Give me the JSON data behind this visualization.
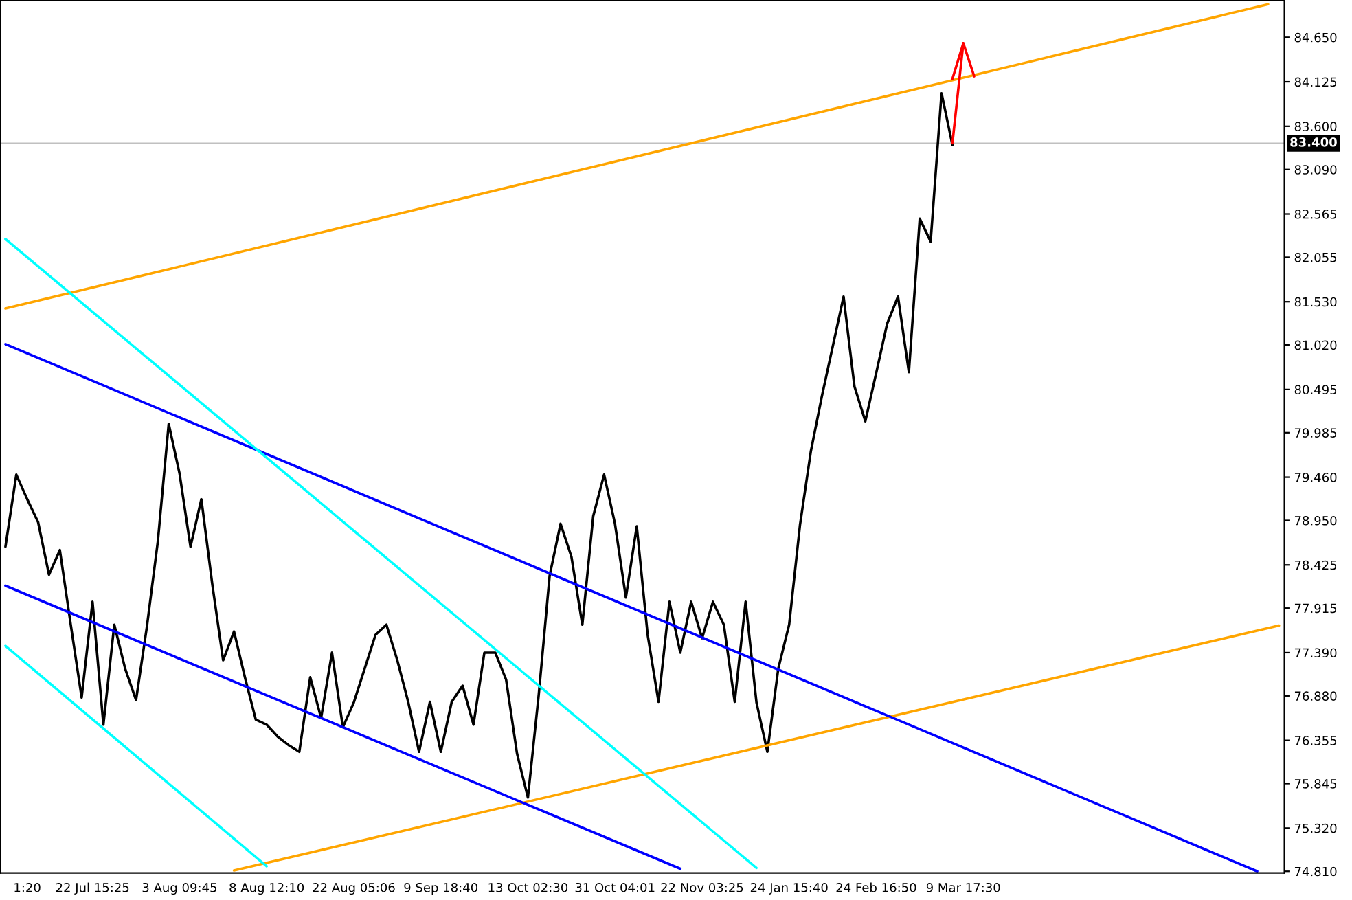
{
  "chart_data": {
    "type": "line",
    "categories": [
      null,
      null,
      "1:20",
      null,
      null,
      null,
      null,
      null,
      "22 Jul 15:25",
      null,
      null,
      null,
      null,
      null,
      null,
      null,
      "3 Aug 09:45",
      null,
      null,
      null,
      null,
      null,
      null,
      null,
      "8 Aug 12:10",
      null,
      null,
      null,
      null,
      null,
      null,
      null,
      "22 Aug 05:06",
      null,
      null,
      null,
      null,
      null,
      null,
      null,
      "9 Sep 18:40",
      null,
      null,
      null,
      null,
      null,
      null,
      null,
      "13 Oct 02:30",
      null,
      null,
      null,
      null,
      null,
      null,
      null,
      "31 Oct 04:01",
      null,
      null,
      null,
      null,
      null,
      null,
      null,
      "22 Nov 03:25",
      null,
      null,
      null,
      null,
      null,
      null,
      null,
      "24 Jan 15:40",
      null,
      null,
      null,
      null,
      null,
      null,
      null,
      "24 Feb 16:50",
      null,
      null,
      null,
      null,
      null,
      null,
      null,
      "9 Mar 17:30",
      null,
      null,
      null,
      null,
      null,
      null,
      null,
      null,
      null,
      null,
      null,
      null,
      null,
      null,
      null,
      null,
      null,
      null,
      null,
      null,
      null,
      null,
      null,
      null,
      null,
      null,
      null,
      null,
      null
    ],
    "ylim": [
      74.79,
      85.09
    ],
    "yticks": [
      {
        "value": 74.81,
        "label": "74.810"
      },
      {
        "value": 75.32,
        "label": "75.320"
      },
      {
        "value": 75.845,
        "label": "75.845"
      },
      {
        "value": 76.355,
        "label": "76.355"
      },
      {
        "value": 76.88,
        "label": "76.880"
      },
      {
        "value": 77.39,
        "label": "77.390"
      },
      {
        "value": 77.915,
        "label": "77.915"
      },
      {
        "value": 78.425,
        "label": "78.425"
      },
      {
        "value": 78.95,
        "label": "78.950"
      },
      {
        "value": 79.46,
        "label": "79.460"
      },
      {
        "value": 79.985,
        "label": "79.985"
      },
      {
        "value": 80.495,
        "label": "80.495"
      },
      {
        "value": 81.02,
        "label": "81.020"
      },
      {
        "value": 81.53,
        "label": "81.530"
      },
      {
        "value": 82.055,
        "label": "82.055"
      },
      {
        "value": 82.565,
        "label": "82.565"
      },
      {
        "value": 83.09,
        "label": "83.090"
      },
      {
        "value": 83.6,
        "label": "83.600"
      },
      {
        "value": 84.125,
        "label": "84.125"
      },
      {
        "value": 84.65,
        "label": "84.650"
      }
    ],
    "grid": false,
    "line_style": "solid",
    "ref_lines": [
      {
        "axis": "y",
        "value": 83.4,
        "label": "83.400",
        "color": "#c0c0c0"
      }
    ],
    "series": [
      {
        "color": "#000000",
        "values": [
          78.64,
          79.49,
          79.2,
          78.93,
          78.31,
          78.6,
          77.72,
          76.86,
          77.99,
          76.54,
          77.72,
          77.2,
          76.83,
          77.7,
          78.7,
          80.09,
          79.5,
          78.64,
          79.2,
          78.2,
          77.3,
          77.64,
          77.1,
          76.6,
          76.54,
          76.4,
          76.3,
          76.22,
          77.1,
          76.62,
          77.39,
          76.51,
          76.8,
          77.2,
          77.6,
          77.72,
          77.3,
          76.81,
          76.22,
          76.81,
          76.22,
          76.81,
          77.0,
          76.54,
          77.39,
          77.39,
          77.07,
          76.2,
          75.68,
          76.9,
          78.3,
          78.91,
          78.52,
          77.72,
          79.0,
          79.49,
          78.91,
          78.04,
          78.88,
          77.6,
          76.81,
          77.99,
          77.39,
          77.99,
          77.56,
          77.99,
          77.72,
          76.81,
          77.99,
          76.8,
          76.22,
          77.2,
          77.72,
          78.9,
          79.77,
          80.41,
          81.0,
          81.59,
          80.53,
          80.12,
          80.69,
          81.27,
          81.59,
          80.7,
          82.51,
          82.24,
          83.99,
          83.38,
          null,
          null,
          null,
          null,
          null,
          null,
          null,
          null,
          null,
          null,
          null,
          null,
          null,
          null,
          null,
          null,
          null,
          null,
          null,
          null,
          null,
          null,
          null,
          null,
          null,
          null,
          null,
          null,
          null,
          null
        ]
      },
      {
        "color": "#ffa500",
        "values": [
          81.45,
          null,
          null,
          null,
          null,
          null,
          null,
          null,
          null,
          null,
          null,
          null,
          null,
          null,
          null,
          null,
          null,
          null,
          null,
          null,
          null,
          null,
          null,
          null,
          null,
          null,
          null,
          null,
          null,
          null,
          null,
          null,
          null,
          null,
          null,
          null,
          null,
          null,
          null,
          null,
          null,
          null,
          null,
          null,
          null,
          null,
          null,
          null,
          null,
          null,
          null,
          null,
          null,
          null,
          null,
          null,
          null,
          null,
          null,
          null,
          null,
          null,
          null,
          null,
          null,
          null,
          null,
          null,
          null,
          null,
          null,
          null,
          null,
          null,
          null,
          null,
          null,
          null,
          null,
          null,
          null,
          null,
          null,
          null,
          null,
          null,
          null,
          null,
          null,
          null,
          null,
          null,
          null,
          null,
          null,
          null,
          null,
          null,
          null,
          null,
          null,
          null,
          null,
          null,
          null,
          null,
          null,
          null,
          null,
          null,
          null,
          null,
          null,
          null,
          null,
          null,
          85.04,
          null
        ]
      },
      {
        "color": "#ffa500",
        "values": [
          null,
          null,
          null,
          null,
          null,
          null,
          null,
          null,
          null,
          null,
          null,
          null,
          null,
          null,
          null,
          null,
          null,
          null,
          null,
          null,
          null,
          74.82,
          null,
          null,
          null,
          null,
          null,
          null,
          null,
          null,
          null,
          null,
          null,
          null,
          null,
          null,
          null,
          null,
          null,
          null,
          null,
          null,
          null,
          null,
          null,
          null,
          null,
          null,
          null,
          null,
          null,
          null,
          null,
          null,
          null,
          null,
          null,
          null,
          null,
          null,
          null,
          null,
          null,
          null,
          null,
          null,
          null,
          null,
          null,
          null,
          null,
          null,
          null,
          null,
          null,
          null,
          null,
          null,
          null,
          null,
          null,
          null,
          null,
          null,
          null,
          null,
          null,
          null,
          null,
          null,
          null,
          null,
          null,
          null,
          null,
          null,
          null,
          null,
          null,
          null,
          null,
          null,
          null,
          null,
          null,
          null,
          null,
          null,
          null,
          null,
          null,
          null,
          null,
          null,
          null,
          null,
          null,
          77.71
        ]
      },
      {
        "color": "#0000ff",
        "values": [
          81.03,
          null,
          null,
          null,
          null,
          null,
          null,
          null,
          null,
          null,
          null,
          null,
          null,
          null,
          null,
          null,
          null,
          null,
          null,
          null,
          null,
          null,
          null,
          null,
          null,
          null,
          null,
          null,
          null,
          null,
          null,
          null,
          null,
          null,
          null,
          null,
          null,
          null,
          null,
          null,
          null,
          null,
          null,
          null,
          null,
          null,
          null,
          null,
          null,
          null,
          null,
          null,
          null,
          null,
          null,
          null,
          null,
          null,
          null,
          null,
          null,
          null,
          null,
          null,
          null,
          null,
          null,
          null,
          null,
          null,
          null,
          null,
          null,
          null,
          null,
          null,
          null,
          null,
          null,
          null,
          null,
          null,
          null,
          null,
          null,
          null,
          null,
          null,
          null,
          null,
          null,
          null,
          null,
          null,
          null,
          null,
          null,
          null,
          null,
          null,
          null,
          null,
          null,
          null,
          null,
          null,
          null,
          null,
          null,
          null,
          null,
          null,
          null,
          null,
          null,
          74.81,
          null,
          null
        ]
      },
      {
        "color": "#0000ff",
        "values": [
          78.18,
          null,
          null,
          null,
          null,
          null,
          null,
          null,
          null,
          null,
          null,
          null,
          null,
          null,
          null,
          null,
          null,
          null,
          null,
          null,
          null,
          null,
          null,
          null,
          null,
          null,
          null,
          null,
          null,
          null,
          null,
          null,
          null,
          null,
          null,
          null,
          null,
          null,
          null,
          null,
          null,
          null,
          null,
          null,
          null,
          null,
          null,
          null,
          null,
          null,
          null,
          null,
          null,
          null,
          null,
          null,
          null,
          null,
          null,
          null,
          null,
          null,
          74.84,
          null,
          null,
          null,
          null,
          null,
          null,
          null,
          null,
          null,
          null,
          null,
          null,
          null,
          null,
          null,
          null,
          null,
          null,
          null,
          null,
          null,
          null,
          null,
          null,
          null,
          null,
          null,
          null,
          null,
          null,
          null,
          null,
          null,
          null,
          null,
          null,
          null,
          null,
          null,
          null,
          null,
          null,
          null,
          null,
          null,
          null,
          null,
          null,
          null,
          null,
          null,
          null,
          null,
          null,
          null
        ]
      },
      {
        "color": "#00ffff",
        "values": [
          82.27,
          null,
          null,
          null,
          null,
          null,
          null,
          null,
          null,
          null,
          null,
          null,
          null,
          null,
          null,
          null,
          null,
          null,
          null,
          null,
          null,
          null,
          null,
          null,
          null,
          null,
          null,
          null,
          null,
          null,
          null,
          null,
          null,
          null,
          null,
          null,
          null,
          null,
          null,
          null,
          null,
          null,
          null,
          null,
          null,
          null,
          null,
          null,
          null,
          null,
          null,
          null,
          null,
          null,
          null,
          null,
          null,
          null,
          null,
          null,
          null,
          null,
          null,
          null,
          null,
          null,
          null,
          null,
          null,
          74.85,
          null,
          null,
          null,
          null,
          null,
          null,
          null,
          null,
          null,
          null,
          null,
          null,
          null,
          null,
          null,
          null,
          null,
          null,
          null,
          null,
          null,
          null,
          null,
          null,
          null,
          null,
          null,
          null,
          null,
          null,
          null,
          null,
          null,
          null,
          null,
          null,
          null,
          null,
          null,
          null,
          null,
          null,
          null,
          null,
          null,
          null,
          null,
          null
        ]
      },
      {
        "color": "#00ffff",
        "values": [
          77.47,
          null,
          null,
          null,
          null,
          null,
          null,
          null,
          null,
          null,
          null,
          null,
          null,
          null,
          null,
          null,
          null,
          null,
          null,
          null,
          null,
          null,
          null,
          null,
          74.87,
          null,
          null,
          null,
          null,
          null,
          null,
          null,
          null,
          null,
          null,
          null,
          null,
          null,
          null,
          null,
          null,
          null,
          null,
          null,
          null,
          null,
          null,
          null,
          null,
          null,
          null,
          null,
          null,
          null,
          null,
          null,
          null,
          null,
          null,
          null,
          null,
          null,
          null,
          null,
          null,
          null,
          null,
          null,
          null,
          null,
          null,
          null,
          null,
          null,
          null,
          null,
          null,
          null,
          null,
          null,
          null,
          null,
          null,
          null,
          null,
          null,
          null,
          null,
          null,
          null,
          null,
          null,
          null,
          null,
          null,
          null,
          null,
          null,
          null,
          null,
          null,
          null,
          null,
          null,
          null,
          null,
          null,
          null,
          null,
          null,
          null,
          null,
          null,
          null,
          null,
          null,
          null,
          null
        ]
      },
      {
        "color": "#ff0000",
        "values": [
          null,
          null,
          null,
          null,
          null,
          null,
          null,
          null,
          null,
          null,
          null,
          null,
          null,
          null,
          null,
          null,
          null,
          null,
          null,
          null,
          null,
          null,
          null,
          null,
          null,
          null,
          null,
          null,
          null,
          null,
          null,
          null,
          null,
          null,
          null,
          null,
          null,
          null,
          null,
          null,
          null,
          null,
          null,
          null,
          null,
          null,
          null,
          null,
          null,
          null,
          null,
          null,
          null,
          null,
          null,
          null,
          null,
          null,
          null,
          null,
          null,
          null,
          null,
          null,
          null,
          null,
          null,
          null,
          null,
          null,
          null,
          null,
          null,
          null,
          null,
          null,
          null,
          null,
          null,
          null,
          null,
          null,
          null,
          null,
          null,
          null,
          null,
          83.4,
          84.58,
          null,
          null,
          null,
          null,
          null,
          null,
          null,
          null,
          null,
          null,
          null,
          null,
          null,
          null,
          null,
          null,
          null,
          null,
          null,
          null,
          null,
          null,
          null,
          null,
          null,
          null,
          null,
          null,
          null
        ]
      },
      {
        "color": "#ff0000",
        "values": [
          null,
          null,
          null,
          null,
          null,
          null,
          null,
          null,
          null,
          null,
          null,
          null,
          null,
          null,
          null,
          null,
          null,
          null,
          null,
          null,
          null,
          null,
          null,
          null,
          null,
          null,
          null,
          null,
          null,
          null,
          null,
          null,
          null,
          null,
          null,
          null,
          null,
          null,
          null,
          null,
          null,
          null,
          null,
          null,
          null,
          null,
          null,
          null,
          null,
          null,
          null,
          null,
          null,
          null,
          null,
          null,
          null,
          null,
          null,
          null,
          null,
          null,
          null,
          null,
          null,
          null,
          null,
          null,
          null,
          null,
          null,
          null,
          null,
          null,
          null,
          null,
          null,
          null,
          null,
          null,
          null,
          null,
          null,
          null,
          null,
          null,
          null,
          84.16,
          84.58,
          84.19,
          null,
          null,
          null,
          null,
          null,
          null,
          null,
          null,
          null,
          null,
          null,
          null,
          null,
          null,
          null,
          null,
          null,
          null,
          null,
          null,
          null,
          null,
          null,
          null,
          null,
          null,
          null,
          null
        ]
      }
    ]
  }
}
